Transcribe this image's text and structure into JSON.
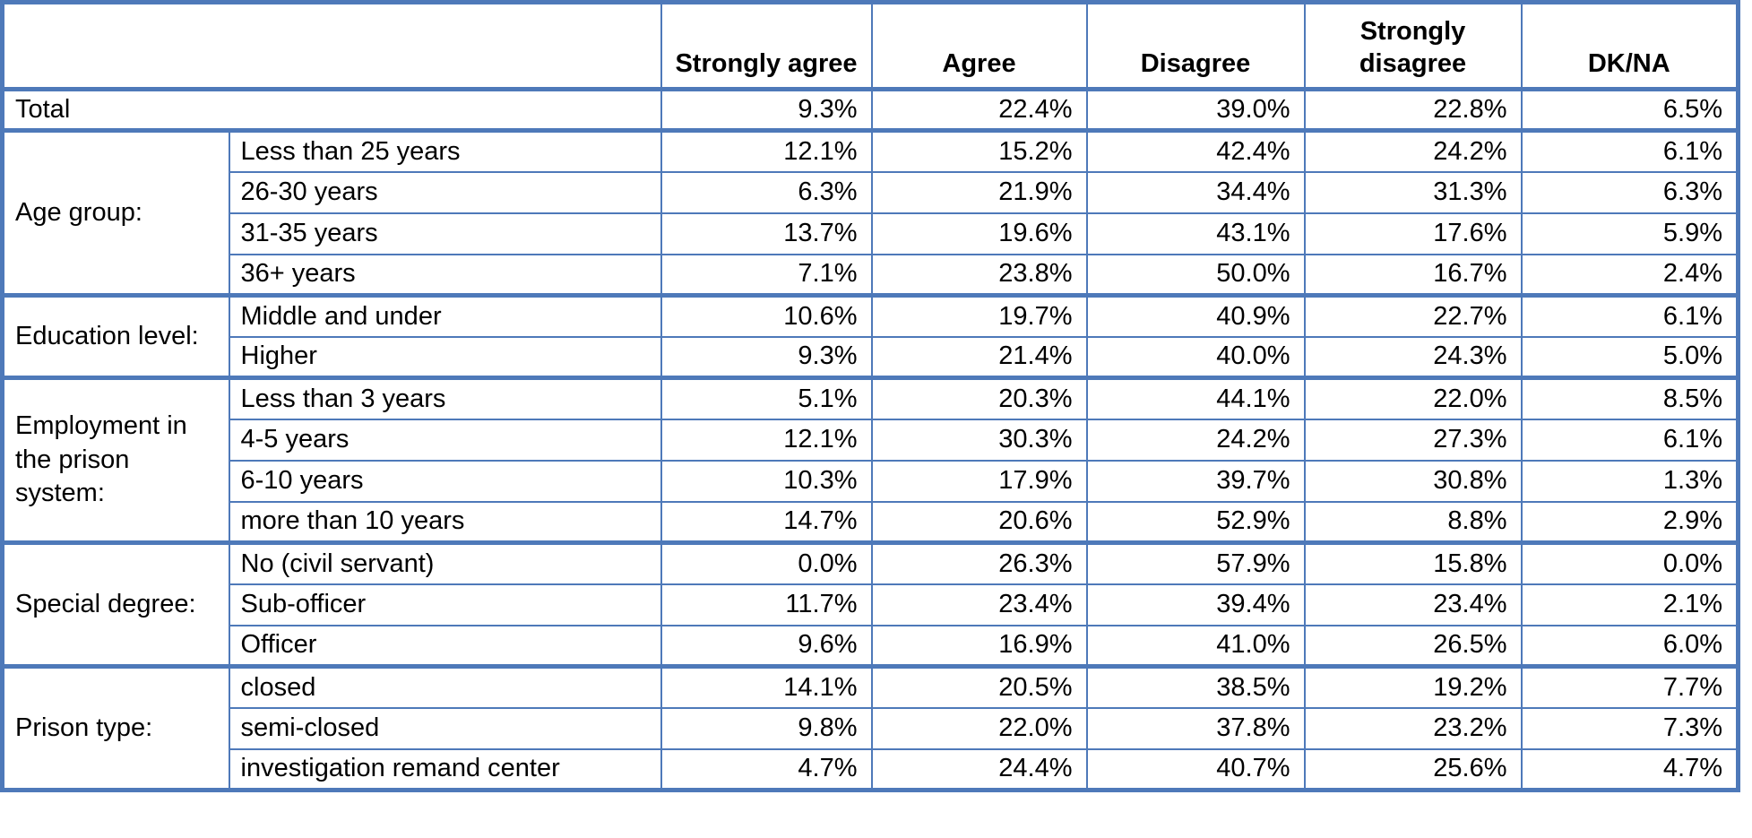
{
  "table": {
    "colors": {
      "border": "#4E79B9",
      "text": "#000000",
      "background": "#FFFFFF"
    },
    "header": {
      "corner": "",
      "columns": [
        "Strongly agree",
        "Agree",
        "Disagree",
        "Strongly disagree",
        "DK/NA"
      ]
    },
    "total": {
      "label": "Total",
      "values": [
        "9.3%",
        "22.4%",
        "39.0%",
        "22.8%",
        "6.5%"
      ]
    },
    "sections": [
      {
        "group": "Age group:",
        "rows": [
          {
            "label": "Less than 25 years",
            "values": [
              "12.1%",
              "15.2%",
              "42.4%",
              "24.2%",
              "6.1%"
            ]
          },
          {
            "label": "26-30 years",
            "values": [
              "6.3%",
              "21.9%",
              "34.4%",
              "31.3%",
              "6.3%"
            ]
          },
          {
            "label": "31-35 years",
            "values": [
              "13.7%",
              "19.6%",
              "43.1%",
              "17.6%",
              "5.9%"
            ]
          },
          {
            "label": "36+ years",
            "values": [
              "7.1%",
              "23.8%",
              "50.0%",
              "16.7%",
              "2.4%"
            ]
          }
        ]
      },
      {
        "group": "Education level:",
        "rows": [
          {
            "label": "Middle and under",
            "values": [
              "10.6%",
              "19.7%",
              "40.9%",
              "22.7%",
              "6.1%"
            ]
          },
          {
            "label": "Higher",
            "values": [
              "9.3%",
              "21.4%",
              "40.0%",
              "24.3%",
              "5.0%"
            ]
          }
        ]
      },
      {
        "group": "Employment in the prison system:",
        "rows": [
          {
            "label": "Less than 3 years",
            "values": [
              "5.1%",
              "20.3%",
              "44.1%",
              "22.0%",
              "8.5%"
            ]
          },
          {
            "label": "4-5 years",
            "values": [
              "12.1%",
              "30.3%",
              "24.2%",
              "27.3%",
              "6.1%"
            ]
          },
          {
            "label": "6-10 years",
            "values": [
              "10.3%",
              "17.9%",
              "39.7%",
              "30.8%",
              "1.3%"
            ]
          },
          {
            "label": "more than 10 years",
            "values": [
              "14.7%",
              "20.6%",
              "52.9%",
              "8.8%",
              "2.9%"
            ]
          }
        ]
      },
      {
        "group": "Special degree:",
        "rows": [
          {
            "label": "No (civil servant)",
            "values": [
              "0.0%",
              "26.3%",
              "57.9%",
              "15.8%",
              "0.0%"
            ]
          },
          {
            "label": "Sub-officer",
            "values": [
              "11.7%",
              "23.4%",
              "39.4%",
              "23.4%",
              "2.1%"
            ]
          },
          {
            "label": "Officer",
            "values": [
              "9.6%",
              "16.9%",
              "41.0%",
              "26.5%",
              "6.0%"
            ]
          }
        ]
      },
      {
        "group": "Prison type:",
        "rows": [
          {
            "label": "closed",
            "values": [
              "14.1%",
              "20.5%",
              "38.5%",
              "19.2%",
              "7.7%"
            ]
          },
          {
            "label": "semi-closed",
            "values": [
              "9.8%",
              "22.0%",
              "37.8%",
              "23.2%",
              "7.3%"
            ]
          },
          {
            "label": "investigation remand center",
            "values": [
              "4.7%",
              "24.4%",
              "40.7%",
              "25.6%",
              "4.7%"
            ]
          }
        ]
      }
    ]
  },
  "chart_data": {
    "type": "table",
    "title": "",
    "columns": [
      "Strongly agree",
      "Agree",
      "Disagree",
      "Strongly disagree",
      "DK/NA"
    ],
    "rows": [
      {
        "group": "",
        "label": "Total",
        "values": [
          9.3,
          22.4,
          39.0,
          22.8,
          6.5
        ]
      },
      {
        "group": "Age group:",
        "label": "Less than 25 years",
        "values": [
          12.1,
          15.2,
          42.4,
          24.2,
          6.1
        ]
      },
      {
        "group": "Age group:",
        "label": "26-30 years",
        "values": [
          6.3,
          21.9,
          34.4,
          31.3,
          6.3
        ]
      },
      {
        "group": "Age group:",
        "label": "31-35 years",
        "values": [
          13.7,
          19.6,
          43.1,
          17.6,
          5.9
        ]
      },
      {
        "group": "Age group:",
        "label": "36+ years",
        "values": [
          7.1,
          23.8,
          50.0,
          16.7,
          2.4
        ]
      },
      {
        "group": "Education level:",
        "label": "Middle and under",
        "values": [
          10.6,
          19.7,
          40.9,
          22.7,
          6.1
        ]
      },
      {
        "group": "Education level:",
        "label": "Higher",
        "values": [
          9.3,
          21.4,
          40.0,
          24.3,
          5.0
        ]
      },
      {
        "group": "Employment in the prison system:",
        "label": "Less than 3 years",
        "values": [
          5.1,
          20.3,
          44.1,
          22.0,
          8.5
        ]
      },
      {
        "group": "Employment in the prison system:",
        "label": "4-5 years",
        "values": [
          12.1,
          30.3,
          24.2,
          27.3,
          6.1
        ]
      },
      {
        "group": "Employment in the prison system:",
        "label": "6-10 years",
        "values": [
          10.3,
          17.9,
          39.7,
          30.8,
          1.3
        ]
      },
      {
        "group": "Employment in the prison system:",
        "label": "more than 10 years",
        "values": [
          14.7,
          20.6,
          52.9,
          8.8,
          2.9
        ]
      },
      {
        "group": "Special degree:",
        "label": "No (civil servant)",
        "values": [
          0.0,
          26.3,
          57.9,
          15.8,
          0.0
        ]
      },
      {
        "group": "Special degree:",
        "label": "Sub-officer",
        "values": [
          11.7,
          23.4,
          39.4,
          23.4,
          2.1
        ]
      },
      {
        "group": "Special degree:",
        "label": "Officer",
        "values": [
          9.6,
          16.9,
          41.0,
          26.5,
          6.0
        ]
      },
      {
        "group": "Prison type:",
        "label": "closed",
        "values": [
          14.1,
          20.5,
          38.5,
          19.2,
          7.7
        ]
      },
      {
        "group": "Prison type:",
        "label": "semi-closed",
        "values": [
          9.8,
          22.0,
          37.8,
          23.2,
          7.3
        ]
      },
      {
        "group": "Prison type:",
        "label": "investigation remand center",
        "values": [
          4.7,
          24.4,
          40.7,
          25.6,
          4.7
        ]
      }
    ],
    "units": "%"
  }
}
